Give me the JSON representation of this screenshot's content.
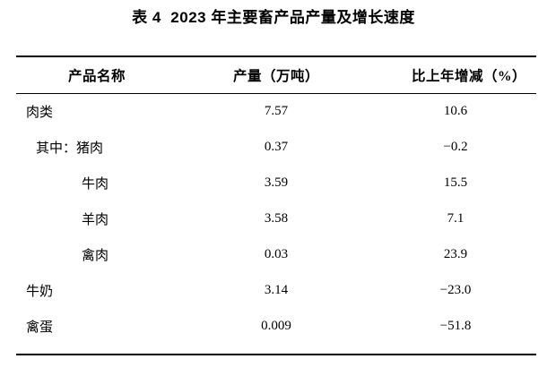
{
  "title": "表 4  2023 年主要畜产品产量及增长速度",
  "table": {
    "columns": [
      "产品名称",
      "产量（万吨）",
      "比上年增减（%）"
    ],
    "rows": [
      {
        "name": "肉类",
        "output": "7.57",
        "change": "10.6"
      },
      {
        "name": "其中：猪肉",
        "output": "0.37",
        "change": "−0.2"
      },
      {
        "name": "牛肉",
        "output": "3.59",
        "change": "15.5"
      },
      {
        "name": "羊肉",
        "output": "3.58",
        "change": "7.1"
      },
      {
        "name": "禽肉",
        "output": "0.03",
        "change": "23.9"
      },
      {
        "name": "牛奶",
        "output": "3.14",
        "change": "−23.0"
      },
      {
        "name": "禽蛋",
        "output": "0.009",
        "change": "−51.8"
      }
    ]
  }
}
